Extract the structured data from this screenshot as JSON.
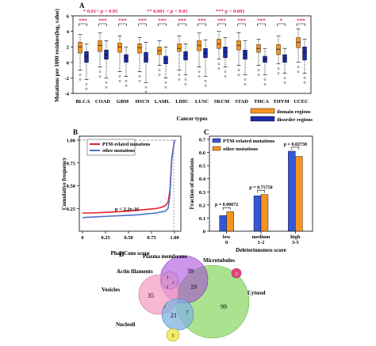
{
  "panels": {
    "A": "A",
    "B": "B",
    "C": "C",
    "D": "D"
  },
  "chart_data": [
    {
      "id": "A",
      "type": "box",
      "ylabel": "Mutations per 1000 residues(log₂ value)",
      "xlabel": "Cancer types",
      "ylim": [
        -4,
        6
      ],
      "yticks": [
        -4,
        -2,
        0,
        2,
        4,
        6
      ],
      "categories": [
        "BLCA",
        "COAD",
        "GBM",
        "HSCN",
        "LAML",
        "LIHC",
        "LUSC",
        "SKCM",
        "STAD",
        "THCA",
        "THYM",
        "UCEC"
      ],
      "significance": [
        "***",
        "***",
        "***",
        "***",
        "***",
        "***",
        "***",
        "***",
        "***",
        "***",
        "*",
        "***"
      ],
      "sig_legend": [
        {
          "text": "* 0.01< p < 0.05",
          "color": "#e0245e"
        },
        {
          "text": "** 0.001 < p < 0.01",
          "color": "#e0245e"
        },
        {
          "text": "*** p < 0.001",
          "color": "#e0245e"
        }
      ],
      "legend": [
        {
          "name": "domain regions",
          "color": "#f7941d"
        },
        {
          "name": "disorder regions",
          "color": "#1c2ba8"
        }
      ],
      "series": [
        {
          "name": "domain regions",
          "boxes": [
            [
              -1.0,
              1.2,
              2.0,
              2.6,
              3.6
            ],
            [
              -0.6,
              1.4,
              2.2,
              2.8,
              3.8
            ],
            [
              -1.2,
              1.3,
              2.0,
              2.5,
              3.4
            ],
            [
              -1.2,
              1.2,
              1.9,
              2.4,
              3.2
            ],
            [
              -0.4,
              1.0,
              1.5,
              2.0,
              2.8
            ],
            [
              -1.0,
              1.4,
              1.8,
              2.4,
              3.4
            ],
            [
              -0.6,
              1.5,
              2.2,
              2.8,
              3.8
            ],
            [
              0.4,
              1.8,
              2.4,
              3.0,
              4.0
            ],
            [
              -0.4,
              1.6,
              2.2,
              2.8,
              3.8
            ],
            [
              -0.4,
              1.3,
              1.8,
              2.3,
              3.0
            ],
            [
              -0.2,
              1.0,
              1.7,
              2.3,
              3.4
            ],
            [
              0.0,
              1.9,
              2.6,
              3.2,
              4.3
            ]
          ]
        },
        {
          "name": "disorder regions",
          "boxes": [
            [
              -2.2,
              0.0,
              0.8,
              1.4,
              2.4
            ],
            [
              -2.0,
              0.4,
              1.0,
              1.6,
              2.8
            ],
            [
              -1.8,
              0.0,
              0.6,
              1.0,
              2.0
            ],
            [
              -2.6,
              0.0,
              0.5,
              1.3,
              2.6
            ],
            [
              -2.0,
              -0.2,
              0.4,
              0.8,
              2.0
            ],
            [
              -1.6,
              0.3,
              0.9,
              1.4,
              2.4
            ],
            [
              -1.8,
              0.6,
              1.2,
              1.8,
              2.9
            ],
            [
              -0.6,
              0.6,
              1.3,
              2.0,
              3.2
            ],
            [
              -1.6,
              0.4,
              1.0,
              1.6,
              2.8
            ],
            [
              -1.6,
              0.0,
              0.4,
              0.8,
              1.8
            ],
            [
              -1.4,
              0.0,
              0.5,
              1.0,
              1.8
            ],
            [
              -1.4,
              0.3,
              1.3,
              2.0,
              3.0
            ]
          ]
        }
      ]
    },
    {
      "id": "B",
      "type": "line",
      "xlabel": "PhastCons score",
      "ylabel": "Cumulative frequency",
      "xlim": [
        0,
        1
      ],
      "ylim": [
        0,
        1
      ],
      "xticks": [
        "0",
        "0.25",
        "0.50",
        "0.75",
        "1.00"
      ],
      "yticks": [
        "0.25",
        "0.50",
        "0.75",
        "1.00"
      ],
      "annotation": "p < 2.2e-16",
      "series": [
        {
          "name": "PTM-related mutations",
          "color": "#e8202a",
          "x": [
            0,
            0.1,
            0.2,
            0.3,
            0.4,
            0.5,
            0.6,
            0.7,
            0.8,
            0.85,
            0.9,
            0.93,
            0.95,
            0.97,
            1.0
          ],
          "y": [
            0.2,
            0.2,
            0.205,
            0.21,
            0.215,
            0.22,
            0.23,
            0.24,
            0.25,
            0.26,
            0.28,
            0.32,
            0.45,
            0.8,
            1.0
          ]
        },
        {
          "name": "other mutations",
          "color": "#4a72c8",
          "x": [
            0,
            0.1,
            0.2,
            0.3,
            0.4,
            0.5,
            0.6,
            0.7,
            0.8,
            0.85,
            0.9,
            0.93,
            0.95,
            0.97,
            1.0
          ],
          "y": [
            0.15,
            0.155,
            0.16,
            0.165,
            0.17,
            0.175,
            0.18,
            0.19,
            0.2,
            0.21,
            0.22,
            0.25,
            0.4,
            0.78,
            1.0
          ]
        }
      ]
    },
    {
      "id": "C",
      "type": "bar",
      "xlabel": "Deleteriousness score",
      "ylabel": "Fraction of mutations",
      "ylim": [
        0,
        0.7
      ],
      "yticks": [
        "0",
        "0.1",
        "0.2",
        "0.3",
        "0.4",
        "0.5",
        "0.6",
        "0.7"
      ],
      "categories": [
        "low",
        "medium",
        "high"
      ],
      "category_sub": [
        "0",
        "1-2",
        "3-5"
      ],
      "p_values": [
        "p = 0.00672",
        "p = 0.75758",
        "p = 0.02738"
      ],
      "series": [
        {
          "name": "PTM-related mutations",
          "color": "#3556d6",
          "values": [
            0.12,
            0.27,
            0.61
          ]
        },
        {
          "name": "other mutations",
          "color": "#f7941d",
          "values": [
            0.15,
            0.28,
            0.57
          ]
        }
      ]
    }
  ],
  "venn": {
    "sets": [
      {
        "name": "Plasma membrane",
        "color": "#a43fd8"
      },
      {
        "name": "Microtubules",
        "color": "#e0457b"
      },
      {
        "name": "Actin filaments",
        "color": "#c98ad6"
      },
      {
        "name": "Vesicles",
        "color": "#f4a0c4"
      },
      {
        "name": "Cytosol",
        "color": "#8ed86b"
      },
      {
        "name": "Nucleoli",
        "color": "#7fb3e0"
      },
      {
        "name": "Nucleoli small",
        "color": "#f2ea6a"
      }
    ],
    "counts": {
      "plasma": "39",
      "microtubules": "3",
      "actin_a": "3",
      "actin_b": "1",
      "actin_c": "2",
      "vesicles": "35",
      "cyto_plasma": "19",
      "cytosol": "99",
      "nucleoli": "21",
      "nuc_cyto": "7",
      "nuc_ves": "1",
      "small": "5"
    }
  }
}
